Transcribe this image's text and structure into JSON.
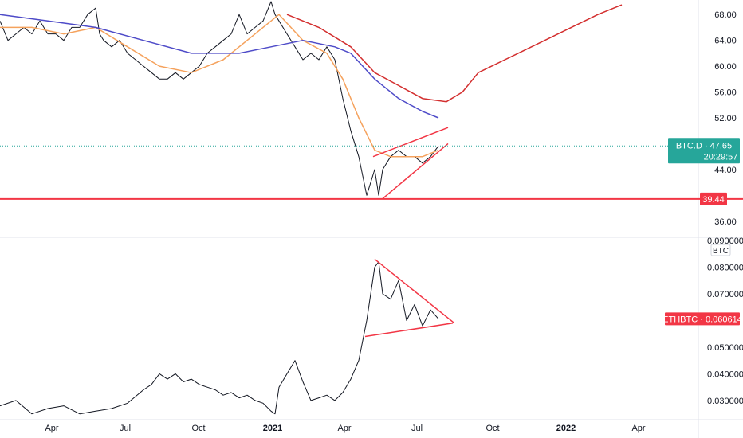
{
  "chart_data": [
    {
      "type": "line",
      "id": "top-pane",
      "symbol": "BTC.D",
      "last_value": "47.65",
      "countdown": "20:29:57",
      "level_label": "39.44",
      "level_value": 39.44,
      "ylim": [
        34.0,
        70.0
      ],
      "y_ticks": [
        "68.00",
        "64.00",
        "60.00",
        "56.00",
        "52.00",
        "44.00",
        "36.00"
      ],
      "y_tick_values": [
        68,
        64,
        60,
        56,
        52,
        44,
        36
      ],
      "colors": {
        "price": "#131722",
        "ma_fast": "#f5a25d",
        "ma_mid": "#4e4bc8",
        "ma_slow": "#d32f2f",
        "trend": "#f23645",
        "badge": "#26a69a",
        "level_badge": "#f23645"
      },
      "series": [
        {
          "key": "price",
          "x": [
            0,
            10,
            20,
            30,
            40,
            50,
            60,
            70,
            80,
            90,
            100,
            110,
            120,
            125,
            130,
            140,
            150,
            160,
            170,
            180,
            190,
            200,
            210,
            220,
            230,
            240,
            250,
            260,
            270,
            280,
            290,
            300,
            310,
            320,
            330,
            340,
            345,
            350,
            360,
            370,
            380,
            390,
            400,
            410,
            420,
            430,
            440,
            450,
            460,
            470,
            475,
            480,
            490,
            500,
            510,
            520,
            530,
            540,
            550
          ],
          "y": [
            67,
            64,
            65,
            66,
            65,
            67,
            65,
            65,
            64,
            66,
            66,
            68,
            69,
            65,
            64,
            63,
            64,
            62,
            61,
            60,
            59,
            58,
            58,
            59,
            58,
            59,
            60,
            62,
            63,
            64,
            65,
            68,
            65,
            66,
            67,
            70,
            68,
            67,
            65,
            63,
            61,
            62,
            61,
            63,
            61,
            55,
            50,
            46,
            40,
            44,
            40,
            44,
            46,
            47,
            46,
            46,
            45,
            46,
            47.65
          ]
        },
        {
          "key": "ma_fast",
          "x": [
            0,
            40,
            80,
            120,
            160,
            200,
            240,
            280,
            320,
            350,
            380,
            410,
            430,
            450,
            470,
            490,
            510,
            530,
            550
          ],
          "y": [
            66,
            66,
            65,
            66,
            63,
            60,
            59,
            61,
            65,
            68,
            64,
            62,
            58,
            52,
            47,
            46,
            46,
            46,
            47
          ]
        },
        {
          "key": "ma_mid",
          "x": [
            0,
            60,
            120,
            180,
            240,
            300,
            340,
            380,
            420,
            440,
            470,
            500,
            530,
            550
          ],
          "y": [
            68,
            67,
            66,
            64,
            62,
            62,
            63,
            64,
            63,
            62,
            58,
            55,
            53,
            52
          ]
        },
        {
          "key": "ma_slow",
          "x": [
            360,
            400,
            440,
            470,
            500,
            530,
            560,
            580,
            600,
            650,
            700,
            750,
            780
          ],
          "y": [
            68,
            66,
            63,
            59,
            57,
            55,
            54.5,
            56,
            59,
            62,
            65,
            68,
            69.5
          ]
        }
      ],
      "trendlines": [
        {
          "x": [
            468,
            562
          ],
          "y": [
            46,
            50.5
          ]
        },
        {
          "x": [
            480,
            562
          ],
          "y": [
            39.5,
            48
          ]
        }
      ]
    },
    {
      "type": "line",
      "id": "bottom-pane",
      "symbol": "ETHBTC",
      "last_value": "0.060614",
      "scale_label": "BTC",
      "ylim": [
        0.024,
        0.09
      ],
      "y_ticks": [
        "0.080000",
        "0.070000",
        "0.050000",
        "0.040000",
        "0.030000"
      ],
      "y_tick_values": [
        0.08,
        0.07,
        0.05,
        0.04,
        0.03
      ],
      "top_tick": "0.090000",
      "colors": {
        "price": "#131722",
        "trend": "#f23645",
        "badge": "#f23645"
      },
      "series": [
        {
          "key": "price",
          "x": [
            0,
            20,
            40,
            60,
            80,
            100,
            120,
            140,
            160,
            180,
            190,
            200,
            210,
            220,
            230,
            240,
            250,
            260,
            270,
            280,
            290,
            300,
            310,
            320,
            330,
            340,
            345,
            350,
            360,
            370,
            380,
            390,
            400,
            410,
            420,
            430,
            440,
            450,
            460,
            470,
            475,
            480,
            490,
            500,
            510,
            520,
            530,
            540,
            550
          ],
          "y": [
            0.028,
            0.03,
            0.025,
            0.027,
            0.028,
            0.025,
            0.026,
            0.027,
            0.029,
            0.034,
            0.036,
            0.04,
            0.038,
            0.04,
            0.037,
            0.038,
            0.036,
            0.035,
            0.034,
            0.032,
            0.033,
            0.031,
            0.032,
            0.03,
            0.029,
            0.026,
            0.025,
            0.035,
            0.04,
            0.045,
            0.037,
            0.03,
            0.031,
            0.032,
            0.03,
            0.033,
            0.038,
            0.045,
            0.06,
            0.08,
            0.082,
            0.07,
            0.068,
            0.075,
            0.06,
            0.066,
            0.058,
            0.064,
            0.060614
          ]
        }
      ],
      "trendlines": [
        {
          "x": [
            470,
            570
          ],
          "y": [
            0.083,
            0.059
          ]
        },
        {
          "x": [
            458,
            568
          ],
          "y": [
            0.054,
            0.059
          ]
        }
      ]
    }
  ],
  "x_axis": {
    "labels": [
      "Apr",
      "Jul",
      "Oct",
      "2021",
      "Apr",
      "Jul",
      "Oct",
      "2022",
      "Apr"
    ],
    "bold": [
      false,
      false,
      false,
      true,
      false,
      false,
      false,
      true,
      false
    ],
    "positions": [
      65,
      157,
      249,
      342,
      432,
      523,
      618,
      710,
      801
    ]
  }
}
